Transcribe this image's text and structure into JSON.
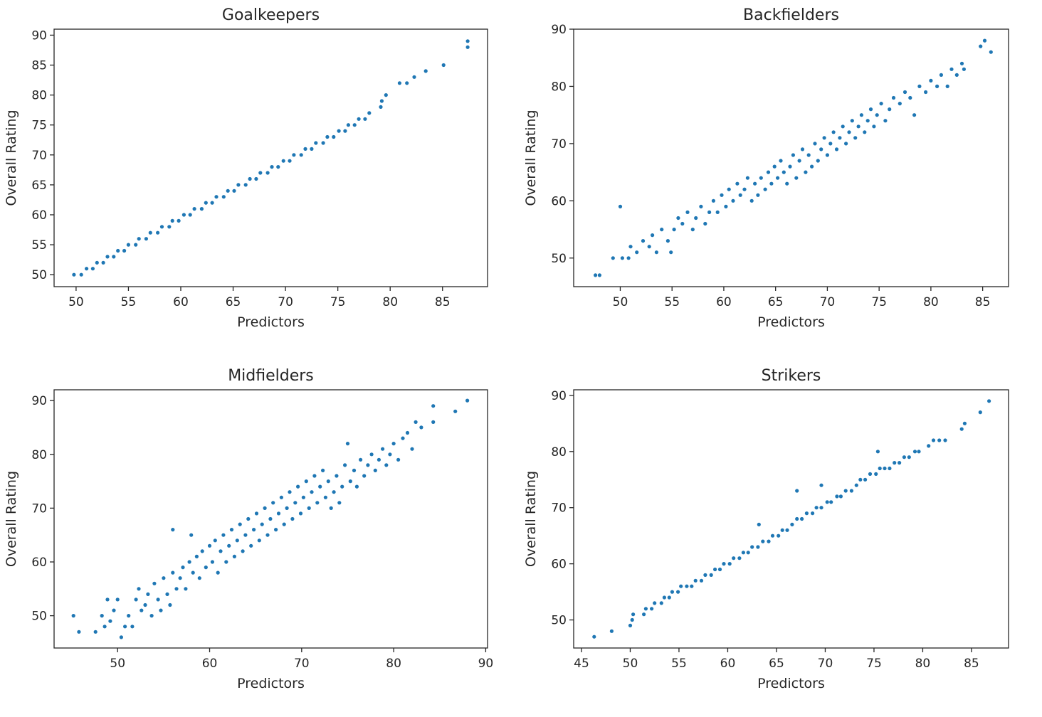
{
  "chart_data": [
    {
      "type": "scatter",
      "title": "Goalkeepers",
      "xlabel": "Predictors",
      "ylabel": "Overall Rating",
      "xlim": [
        47.9,
        89.3
      ],
      "ylim": [
        48.0,
        91.0
      ],
      "xticks": [
        50,
        55,
        60,
        65,
        70,
        75,
        80,
        85
      ],
      "yticks": [
        50,
        55,
        60,
        65,
        70,
        75,
        80,
        85,
        90
      ],
      "color": "#1f77b4",
      "grid": false,
      "points": [
        [
          49.8,
          50
        ],
        [
          50.5,
          50
        ],
        [
          51.0,
          51
        ],
        [
          51.6,
          51
        ],
        [
          52.0,
          52
        ],
        [
          52.6,
          52
        ],
        [
          53.0,
          53
        ],
        [
          53.6,
          53
        ],
        [
          54.0,
          54
        ],
        [
          54.6,
          54
        ],
        [
          55.0,
          55
        ],
        [
          55.7,
          55
        ],
        [
          56.0,
          56
        ],
        [
          56.7,
          56
        ],
        [
          57.1,
          57
        ],
        [
          57.8,
          57
        ],
        [
          58.2,
          58
        ],
        [
          58.9,
          58
        ],
        [
          59.2,
          59
        ],
        [
          59.8,
          59
        ],
        [
          60.3,
          60
        ],
        [
          60.9,
          60
        ],
        [
          61.3,
          61
        ],
        [
          62.0,
          61
        ],
        [
          62.4,
          62
        ],
        [
          63.0,
          62
        ],
        [
          63.4,
          63
        ],
        [
          64.1,
          63
        ],
        [
          64.5,
          64
        ],
        [
          65.1,
          64
        ],
        [
          65.5,
          65
        ],
        [
          66.2,
          65
        ],
        [
          66.6,
          66
        ],
        [
          67.2,
          66
        ],
        [
          67.6,
          67
        ],
        [
          68.3,
          67
        ],
        [
          68.7,
          68
        ],
        [
          69.3,
          68
        ],
        [
          69.8,
          69
        ],
        [
          70.4,
          69
        ],
        [
          70.8,
          70
        ],
        [
          71.5,
          70
        ],
        [
          71.9,
          71
        ],
        [
          72.5,
          71
        ],
        [
          72.9,
          72
        ],
        [
          73.6,
          72
        ],
        [
          74.0,
          73
        ],
        [
          74.6,
          73
        ],
        [
          75.1,
          74
        ],
        [
          75.7,
          74
        ],
        [
          76.0,
          75
        ],
        [
          76.6,
          75
        ],
        [
          77.0,
          76
        ],
        [
          77.6,
          76
        ],
        [
          78.0,
          77
        ],
        [
          79.1,
          78
        ],
        [
          79.2,
          79
        ],
        [
          79.6,
          80
        ],
        [
          80.9,
          82
        ],
        [
          81.6,
          82
        ],
        [
          82.3,
          83
        ],
        [
          83.4,
          84
        ],
        [
          85.1,
          85
        ],
        [
          87.4,
          88
        ],
        [
          87.4,
          89
        ]
      ]
    },
    {
      "type": "scatter",
      "title": "Backfielders",
      "xlabel": "Predictors",
      "ylabel": "Overall Rating",
      "xlim": [
        45.5,
        87.5
      ],
      "ylim": [
        45.0,
        90.0
      ],
      "xticks": [
        50,
        55,
        60,
        65,
        70,
        75,
        80,
        85
      ],
      "yticks": [
        50,
        60,
        70,
        80,
        90
      ],
      "color": "#1f77b4",
      "grid": false,
      "points": [
        [
          47.6,
          47
        ],
        [
          48.0,
          47
        ],
        [
          49.3,
          50
        ],
        [
          50.0,
          59
        ],
        [
          50.2,
          50
        ],
        [
          50.8,
          50
        ],
        [
          51.0,
          52
        ],
        [
          51.6,
          51
        ],
        [
          52.2,
          53
        ],
        [
          52.8,
          52
        ],
        [
          53.1,
          54
        ],
        [
          53.5,
          51
        ],
        [
          54.0,
          55
        ],
        [
          54.6,
          53
        ],
        [
          54.9,
          51
        ],
        [
          55.2,
          55
        ],
        [
          55.6,
          57
        ],
        [
          56.0,
          56
        ],
        [
          56.5,
          58
        ],
        [
          57.0,
          55
        ],
        [
          57.3,
          57
        ],
        [
          57.8,
          59
        ],
        [
          58.2,
          56
        ],
        [
          58.6,
          58
        ],
        [
          59.0,
          60
        ],
        [
          59.4,
          58
        ],
        [
          59.8,
          61
        ],
        [
          60.2,
          59
        ],
        [
          60.5,
          62
        ],
        [
          60.9,
          60
        ],
        [
          61.3,
          63
        ],
        [
          61.6,
          61
        ],
        [
          62.0,
          62
        ],
        [
          62.3,
          64
        ],
        [
          62.7,
          60
        ],
        [
          63.0,
          63
        ],
        [
          63.3,
          61
        ],
        [
          63.6,
          64
        ],
        [
          64.0,
          62
        ],
        [
          64.3,
          65
        ],
        [
          64.6,
          63
        ],
        [
          64.9,
          66
        ],
        [
          65.2,
          64
        ],
        [
          65.5,
          67
        ],
        [
          65.8,
          65
        ],
        [
          66.1,
          63
        ],
        [
          66.4,
          66
        ],
        [
          66.7,
          68
        ],
        [
          67.0,
          64
        ],
        [
          67.3,
          67
        ],
        [
          67.6,
          69
        ],
        [
          67.9,
          65
        ],
        [
          68.2,
          68
        ],
        [
          68.5,
          66
        ],
        [
          68.8,
          70
        ],
        [
          69.1,
          67
        ],
        [
          69.4,
          69
        ],
        [
          69.7,
          71
        ],
        [
          70.0,
          68
        ],
        [
          70.3,
          70
        ],
        [
          70.6,
          72
        ],
        [
          70.9,
          69
        ],
        [
          71.2,
          71
        ],
        [
          71.5,
          73
        ],
        [
          71.8,
          70
        ],
        [
          72.1,
          72
        ],
        [
          72.4,
          74
        ],
        [
          72.7,
          71
        ],
        [
          73.0,
          73
        ],
        [
          73.3,
          75
        ],
        [
          73.6,
          72
        ],
        [
          73.9,
          74
        ],
        [
          74.2,
          76
        ],
        [
          74.5,
          73
        ],
        [
          74.8,
          75
        ],
        [
          75.2,
          77
        ],
        [
          75.6,
          74
        ],
        [
          76.0,
          76
        ],
        [
          76.4,
          78
        ],
        [
          77.0,
          77
        ],
        [
          77.5,
          79
        ],
        [
          78.0,
          78
        ],
        [
          78.4,
          75
        ],
        [
          78.9,
          80
        ],
        [
          79.5,
          79
        ],
        [
          80.0,
          81
        ],
        [
          80.6,
          80
        ],
        [
          81.0,
          82
        ],
        [
          81.6,
          80
        ],
        [
          82.0,
          83
        ],
        [
          82.5,
          82
        ],
        [
          83.0,
          84
        ],
        [
          83.2,
          83
        ],
        [
          84.8,
          87
        ],
        [
          85.2,
          88
        ],
        [
          85.8,
          86
        ]
      ]
    },
    {
      "type": "scatter",
      "title": "Midfielders",
      "xlabel": "Predictors",
      "ylabel": "Overall Rating",
      "xlim": [
        43.1,
        90.2
      ],
      "ylim": [
        44.0,
        92.0
      ],
      "xticks": [
        50,
        60,
        70,
        80,
        90
      ],
      "yticks": [
        50,
        60,
        70,
        80,
        90
      ],
      "color": "#1f77b4",
      "grid": false,
      "points": [
        [
          45.2,
          50
        ],
        [
          45.8,
          47
        ],
        [
          47.6,
          47
        ],
        [
          48.3,
          50
        ],
        [
          48.6,
          48
        ],
        [
          48.9,
          53
        ],
        [
          49.2,
          49
        ],
        [
          49.6,
          51
        ],
        [
          50.0,
          53
        ],
        [
          50.4,
          46
        ],
        [
          50.8,
          48
        ],
        [
          51.2,
          50
        ],
        [
          51.6,
          48
        ],
        [
          52.0,
          53
        ],
        [
          52.3,
          55
        ],
        [
          52.6,
          51
        ],
        [
          53.0,
          52
        ],
        [
          53.3,
          54
        ],
        [
          53.7,
          50
        ],
        [
          54.0,
          56
        ],
        [
          54.4,
          53
        ],
        [
          54.7,
          51
        ],
        [
          55.0,
          57
        ],
        [
          55.4,
          54
        ],
        [
          55.7,
          52
        ],
        [
          56.0,
          58
        ],
        [
          56.0,
          66
        ],
        [
          56.4,
          55
        ],
        [
          56.8,
          57
        ],
        [
          57.1,
          59
        ],
        [
          57.4,
          55
        ],
        [
          57.8,
          60
        ],
        [
          58.0,
          65
        ],
        [
          58.2,
          58
        ],
        [
          58.6,
          61
        ],
        [
          58.9,
          57
        ],
        [
          59.2,
          62
        ],
        [
          59.6,
          59
        ],
        [
          60.0,
          63
        ],
        [
          60.3,
          60
        ],
        [
          60.6,
          64
        ],
        [
          60.9,
          58
        ],
        [
          61.2,
          62
        ],
        [
          61.5,
          65
        ],
        [
          61.8,
          60
        ],
        [
          62.1,
          63
        ],
        [
          62.4,
          66
        ],
        [
          62.7,
          61
        ],
        [
          63.0,
          64
        ],
        [
          63.3,
          67
        ],
        [
          63.6,
          62
        ],
        [
          63.9,
          65
        ],
        [
          64.2,
          68
        ],
        [
          64.5,
          63
        ],
        [
          64.8,
          66
        ],
        [
          65.1,
          69
        ],
        [
          65.4,
          64
        ],
        [
          65.7,
          67
        ],
        [
          66.0,
          70
        ],
        [
          66.3,
          65
        ],
        [
          66.6,
          68
        ],
        [
          66.9,
          71
        ],
        [
          67.2,
          66
        ],
        [
          67.5,
          69
        ],
        [
          67.8,
          72
        ],
        [
          68.1,
          67
        ],
        [
          68.4,
          70
        ],
        [
          68.7,
          73
        ],
        [
          69.0,
          68
        ],
        [
          69.3,
          71
        ],
        [
          69.6,
          74
        ],
        [
          69.9,
          69
        ],
        [
          70.2,
          72
        ],
        [
          70.5,
          75
        ],
        [
          70.8,
          70
        ],
        [
          71.1,
          73
        ],
        [
          71.4,
          76
        ],
        [
          71.7,
          71
        ],
        [
          72.0,
          74
        ],
        [
          72.3,
          77
        ],
        [
          72.6,
          72
        ],
        [
          72.9,
          75
        ],
        [
          73.2,
          70
        ],
        [
          73.5,
          73
        ],
        [
          73.8,
          76
        ],
        [
          74.1,
          71
        ],
        [
          74.4,
          74
        ],
        [
          74.7,
          78
        ],
        [
          75.0,
          82
        ],
        [
          75.3,
          75
        ],
        [
          75.7,
          77
        ],
        [
          76.0,
          74
        ],
        [
          76.4,
          79
        ],
        [
          76.8,
          76
        ],
        [
          77.2,
          78
        ],
        [
          77.6,
          80
        ],
        [
          78.0,
          77
        ],
        [
          78.4,
          79
        ],
        [
          78.8,
          81
        ],
        [
          79.2,
          78
        ],
        [
          79.6,
          80
        ],
        [
          80.0,
          82
        ],
        [
          80.5,
          79
        ],
        [
          81.0,
          83
        ],
        [
          81.5,
          84
        ],
        [
          82.0,
          81
        ],
        [
          82.4,
          86
        ],
        [
          83.0,
          85
        ],
        [
          84.3,
          89
        ],
        [
          84.3,
          86
        ],
        [
          86.7,
          88
        ],
        [
          88.0,
          90
        ]
      ]
    },
    {
      "type": "scatter",
      "title": "Strikers",
      "xlabel": "Predictors",
      "ylabel": "Overall Rating",
      "xlim": [
        44.2,
        88.8
      ],
      "ylim": [
        45.0,
        91.0
      ],
      "xticks": [
        45,
        50,
        55,
        60,
        65,
        70,
        75,
        80,
        85
      ],
      "yticks": [
        50,
        60,
        70,
        80,
        90
      ],
      "color": "#1f77b4",
      "grid": false,
      "points": [
        [
          46.3,
          47
        ],
        [
          48.1,
          48
        ],
        [
          50.0,
          49
        ],
        [
          50.2,
          50
        ],
        [
          50.3,
          51
        ],
        [
          51.4,
          51
        ],
        [
          51.6,
          52
        ],
        [
          52.2,
          52
        ],
        [
          52.5,
          53
        ],
        [
          53.2,
          53
        ],
        [
          53.5,
          54
        ],
        [
          54.0,
          54
        ],
        [
          54.3,
          55
        ],
        [
          54.9,
          55
        ],
        [
          55.2,
          56
        ],
        [
          55.8,
          56
        ],
        [
          56.3,
          56
        ],
        [
          56.7,
          57
        ],
        [
          57.3,
          57
        ],
        [
          57.7,
          58
        ],
        [
          58.3,
          58
        ],
        [
          58.7,
          59
        ],
        [
          59.2,
          59
        ],
        [
          59.6,
          60
        ],
        [
          60.2,
          60
        ],
        [
          60.6,
          61
        ],
        [
          61.2,
          61
        ],
        [
          61.6,
          62
        ],
        [
          62.1,
          62
        ],
        [
          62.5,
          63
        ],
        [
          63.1,
          63
        ],
        [
          63.2,
          67
        ],
        [
          63.6,
          64
        ],
        [
          64.2,
          64
        ],
        [
          64.6,
          65
        ],
        [
          65.2,
          65
        ],
        [
          65.6,
          66
        ],
        [
          66.1,
          66
        ],
        [
          66.6,
          67
        ],
        [
          67.1,
          68
        ],
        [
          67.1,
          73
        ],
        [
          67.6,
          68
        ],
        [
          68.1,
          69
        ],
        [
          68.7,
          69
        ],
        [
          69.1,
          70
        ],
        [
          69.6,
          70
        ],
        [
          69.6,
          74
        ],
        [
          70.2,
          71
        ],
        [
          70.6,
          71
        ],
        [
          71.2,
          72
        ],
        [
          71.6,
          72
        ],
        [
          72.1,
          73
        ],
        [
          72.7,
          73
        ],
        [
          73.2,
          74
        ],
        [
          73.6,
          75
        ],
        [
          74.1,
          75
        ],
        [
          74.6,
          76
        ],
        [
          75.2,
          76
        ],
        [
          75.4,
          80
        ],
        [
          75.6,
          77
        ],
        [
          76.1,
          77
        ],
        [
          76.6,
          77
        ],
        [
          77.1,
          78
        ],
        [
          77.6,
          78
        ],
        [
          78.1,
          79
        ],
        [
          78.6,
          79
        ],
        [
          79.2,
          80
        ],
        [
          79.6,
          80
        ],
        [
          80.6,
          81
        ],
        [
          81.1,
          82
        ],
        [
          81.7,
          82
        ],
        [
          82.3,
          82
        ],
        [
          84.0,
          84
        ],
        [
          84.3,
          85
        ],
        [
          85.9,
          87
        ],
        [
          86.8,
          89
        ]
      ]
    }
  ]
}
